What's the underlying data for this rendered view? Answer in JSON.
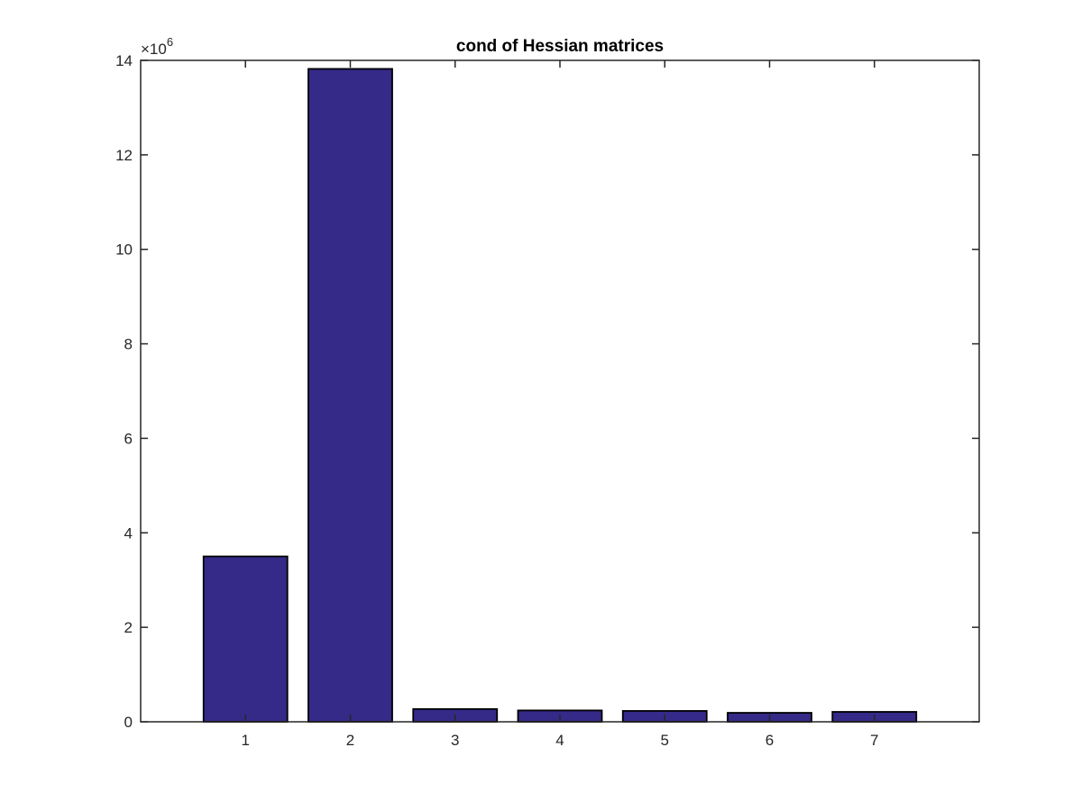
{
  "colors": {
    "bar_fill": "#352a87",
    "bar_edge": "#000000",
    "axis": "#262626",
    "background": "#ffffff"
  },
  "chart_data": {
    "type": "bar",
    "title": "cond of Hessian matrices",
    "xlabel": "",
    "ylabel": "",
    "categories": [
      "1",
      "2",
      "3",
      "4",
      "5",
      "6",
      "7"
    ],
    "values": [
      3500000,
      13820000,
      270000,
      240000,
      230000,
      190000,
      210000
    ],
    "ylim": [
      0,
      14000000
    ],
    "xlim": [
      0,
      8
    ],
    "yticks": [
      0,
      2000000,
      4000000,
      6000000,
      8000000,
      10000000,
      12000000,
      14000000
    ],
    "ytick_labels": [
      "0",
      "2",
      "4",
      "6",
      "8",
      "10",
      "12",
      "14"
    ],
    "y_exponent_label": {
      "base": "×10",
      "power": "6"
    },
    "grid": false,
    "legend": "none"
  }
}
